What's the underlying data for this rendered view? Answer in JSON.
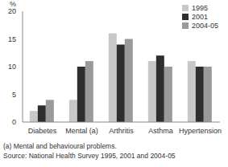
{
  "chart_data": {
    "type": "bar",
    "ylabel": "%",
    "categories": [
      "Diabetes",
      "Mental (a)",
      "Arthritis",
      "Asthma",
      "Hypertension"
    ],
    "series": [
      {
        "name": "1995",
        "color": "#c8c8c8",
        "values": [
          2,
          4,
          16,
          11,
          11
        ]
      },
      {
        "name": "2001",
        "color": "#2e2e2e",
        "values": [
          3,
          10,
          14,
          12,
          10
        ]
      },
      {
        "name": "2004-05",
        "color": "#9a9a9a",
        "values": [
          4,
          11,
          15,
          10,
          10
        ]
      }
    ],
    "ylim": [
      0,
      20
    ],
    "yticks": [
      0,
      5,
      10,
      15,
      20
    ],
    "grid": false,
    "legend": "top-right",
    "annotations": [
      "(a) Mental and behavioural problems.",
      "Source: National Health Survey 1995, 2001 and 2004-05"
    ]
  }
}
